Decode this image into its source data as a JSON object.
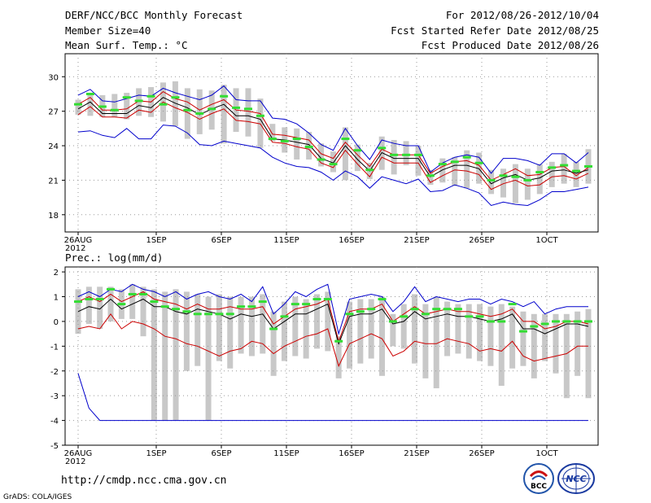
{
  "header": {
    "title": "DERF/NCC/BCC Monthly Forecast",
    "member_size": "Member Size=40",
    "variable": "Mean Surf. Temp.: °C",
    "period": "For 2012/08/26-2012/10/04",
    "fcst_started": "Fcst Started Refer Date 2012/08/25",
    "fcst_produced": "Fcst Produced Date 2012/08/26"
  },
  "footer": {
    "url": "http://cmdp.ncc.cma.gov.cn",
    "grads": "GrADS: COLA/IGES",
    "logo_bcc": "BCC",
    "logo_ncc": "NCC"
  },
  "colors": {
    "upper": "#0000cc",
    "lower": "#cc0000",
    "mean": "#000000",
    "box": "#c8c8c8",
    "obs": "#33dd33"
  },
  "chart_data": [
    {
      "type": "line",
      "title": "Mean Surf. Temp.: °C",
      "x_tick_labels": [
        "26AUG\n2012",
        "1SEP",
        "6SEP",
        "11SEP",
        "16SEP",
        "21SEP",
        "26SEP",
        "1OCT"
      ],
      "x_tick_days": [
        0,
        6,
        11,
        16,
        21,
        26,
        31,
        36
      ],
      "ylim": [
        16.5,
        32
      ],
      "yticks": [
        18,
        21,
        24,
        27,
        30
      ],
      "grid": true,
      "series": [
        {
          "name": "max",
          "color": "#0000cc",
          "values": [
            28.4,
            28.9,
            27.9,
            27.8,
            28.1,
            28.4,
            28.3,
            29.0,
            28.6,
            28.3,
            28.0,
            28.4,
            29.2,
            28.0,
            27.9,
            27.9,
            26.4,
            26.3,
            25.9,
            25.1,
            24.1,
            23.6,
            25.5,
            24.0,
            22.8,
            24.5,
            24.2,
            24.0,
            24.0,
            21.7,
            22.5,
            23.0,
            23.2,
            23.0,
            21.6,
            22.9,
            22.9,
            22.7,
            22.3,
            23.3,
            23.3,
            22.5,
            23.4
          ]
        },
        {
          "name": "upper",
          "color": "#cc0000",
          "values": [
            27.6,
            28.2,
            27.1,
            27.1,
            27.2,
            27.9,
            27.8,
            28.7,
            28.1,
            27.8,
            27.1,
            27.6,
            28.0,
            27.1,
            27.0,
            26.8,
            25.0,
            24.9,
            24.7,
            24.5,
            23.3,
            22.9,
            24.3,
            23.2,
            22.2,
            23.7,
            23.2,
            23.2,
            23.2,
            21.6,
            22.2,
            22.6,
            22.7,
            22.3,
            21.0,
            21.5,
            22.0,
            21.4,
            21.5,
            22.1,
            22.2,
            21.4,
            22.1
          ]
        },
        {
          "name": "mean",
          "color": "#000000",
          "values": [
            27.2,
            27.8,
            26.8,
            26.8,
            26.8,
            27.5,
            27.3,
            28.2,
            27.7,
            27.3,
            26.7,
            27.2,
            27.6,
            26.6,
            26.6,
            26.3,
            24.6,
            24.5,
            24.3,
            24.1,
            22.9,
            22.5,
            24.0,
            22.8,
            21.8,
            23.4,
            22.9,
            22.9,
            22.9,
            21.3,
            21.9,
            22.3,
            22.3,
            22.0,
            20.7,
            21.2,
            21.5,
            21.0,
            21.2,
            21.8,
            21.9,
            21.6,
            21.9
          ]
        },
        {
          "name": "lower",
          "color": "#cc0000",
          "values": [
            26.7,
            27.4,
            26.5,
            26.5,
            26.4,
            27.1,
            26.9,
            27.8,
            27.3,
            26.9,
            26.3,
            26.8,
            27.2,
            26.2,
            26.1,
            25.9,
            24.3,
            24.2,
            23.9,
            23.7,
            22.5,
            22.1,
            23.6,
            22.4,
            21.3,
            23.0,
            22.5,
            22.5,
            22.5,
            20.8,
            21.4,
            21.9,
            21.8,
            21.5,
            20.2,
            20.7,
            21.0,
            20.5,
            20.6,
            21.3,
            21.4,
            21.1,
            21.6
          ]
        },
        {
          "name": "min",
          "color": "#0000cc",
          "values": [
            25.2,
            25.3,
            24.9,
            24.7,
            25.5,
            24.6,
            24.6,
            25.8,
            25.7,
            25.1,
            24.1,
            24.0,
            24.4,
            24.2,
            24.0,
            23.8,
            23.0,
            22.5,
            22.2,
            22.1,
            21.7,
            21.0,
            21.8,
            21.3,
            20.3,
            21.3,
            21.0,
            20.7,
            21.1,
            20.0,
            20.1,
            20.6,
            20.3,
            19.9,
            18.8,
            19.1,
            18.9,
            18.8,
            19.3,
            20.0,
            20.0,
            20.2,
            20.4
          ]
        },
        {
          "name": "box_top",
          "color": "#c8c8c8",
          "values": [
            28.0,
            28.6,
            28.4,
            28.5,
            28.6,
            29.0,
            29.1,
            29.5,
            29.6,
            29.0,
            28.9,
            28.8,
            29.3,
            29.0,
            29.0,
            28.1,
            25.9,
            25.6,
            25.5,
            25.2,
            24.2,
            23.5,
            25.6,
            24.1,
            22.5,
            24.8,
            24.5,
            24.4,
            24.0,
            21.9,
            22.9,
            23.0,
            23.6,
            23.4,
            21.9,
            22.0,
            22.4,
            22.0,
            22.4,
            22.6,
            23.3,
            22.6,
            23.7
          ]
        },
        {
          "name": "box_bottom",
          "color": "#c8c8c8",
          "values": [
            26.7,
            26.6,
            26.5,
            26.5,
            26.3,
            26.6,
            26.5,
            26.1,
            25.7,
            24.6,
            25.0,
            25.4,
            24.2,
            25.2,
            24.8,
            23.8,
            24.4,
            23.4,
            22.8,
            22.8,
            22.2,
            21.7,
            21.0,
            21.8,
            21.1,
            21.9,
            21.5,
            22.3,
            21.4,
            20.6,
            20.8,
            20.5,
            20.3,
            20.7,
            19.8,
            19.5,
            19.0,
            19.3,
            19.8,
            20.4,
            20.7,
            20.4,
            20.7
          ]
        },
        {
          "name": "observed",
          "color": "#33dd33",
          "values": [
            27.6,
            28.5,
            27.4,
            27.1,
            28.2,
            27.9,
            28.3,
            27.6,
            28.2,
            27.1,
            26.8,
            27.2,
            28.3,
            27.3,
            27.2,
            26.6,
            24.6,
            24.4,
            24.6,
            23.9,
            22.8,
            22.4,
            24.6,
            23.6,
            21.9,
            23.8,
            23.2,
            23.2,
            23.2,
            21.4,
            22.4,
            22.6,
            23.0,
            22.5,
            21.0,
            21.4,
            21.3,
            21.0,
            21.7,
            22.1,
            22.3,
            21.8,
            22.2
          ]
        }
      ]
    },
    {
      "type": "line",
      "title": "Prec.: log(mm/d)",
      "x_tick_labels": [
        "26AUG\n2012",
        "1SEP",
        "6SEP",
        "11SEP",
        "16SEP",
        "21SEP",
        "26SEP",
        "1OCT"
      ],
      "x_tick_days": [
        0,
        6,
        11,
        16,
        21,
        26,
        31,
        36
      ],
      "ylim": [
        -5,
        2.2
      ],
      "yticks": [
        -5,
        -4,
        -3,
        -2,
        -1,
        0,
        1,
        2
      ],
      "grid": true,
      "series": [
        {
          "name": "max",
          "color": "#0000cc",
          "values": [
            1.0,
            1.2,
            1.0,
            1.3,
            1.2,
            1.5,
            1.3,
            1.2,
            1.0,
            1.2,
            0.9,
            1.1,
            1.2,
            1.0,
            0.9,
            1.1,
            0.8,
            1.4,
            0.3,
            0.7,
            1.2,
            1.0,
            1.3,
            1.5,
            -0.5,
            0.9,
            1.0,
            1.1,
            1.0,
            0.4,
            0.8,
            1.4,
            0.8,
            1.0,
            0.9,
            0.8,
            0.9,
            0.9,
            0.7,
            0.9,
            0.8,
            0.6,
            0.8,
            0.3,
            0.5,
            0.6,
            0.6,
            0.6
          ]
        },
        {
          "name": "upper",
          "color": "#cc0000",
          "values": [
            0.8,
            1.0,
            0.8,
            1.1,
            0.8,
            1.0,
            1.2,
            0.9,
            0.8,
            0.7,
            0.5,
            0.7,
            0.5,
            0.5,
            0.6,
            0.5,
            0.5,
            0.6,
            -0.1,
            0.2,
            0.5,
            0.6,
            0.7,
            0.9,
            -0.8,
            0.4,
            0.5,
            0.5,
            0.7,
            0.0,
            0.3,
            0.6,
            0.3,
            0.4,
            0.5,
            0.4,
            0.4,
            0.3,
            0.2,
            0.3,
            0.5,
            0.0,
            0.0,
            -0.3,
            -0.2,
            0.0,
            0.0,
            -0.1
          ]
        },
        {
          "name": "mean",
          "color": "#000000",
          "values": [
            0.4,
            0.6,
            0.5,
            0.9,
            0.5,
            0.7,
            0.9,
            0.6,
            0.6,
            0.4,
            0.3,
            0.5,
            0.4,
            0.3,
            0.1,
            0.3,
            0.2,
            0.3,
            -0.3,
            0.0,
            0.3,
            0.3,
            0.5,
            0.7,
            -0.9,
            0.2,
            0.3,
            0.3,
            0.5,
            -0.1,
            0.0,
            0.4,
            0.1,
            0.2,
            0.3,
            0.2,
            0.2,
            0.1,
            0.0,
            0.1,
            0.3,
            -0.3,
            -0.3,
            -0.5,
            -0.3,
            -0.1,
            -0.1,
            -0.2
          ]
        },
        {
          "name": "lower",
          "color": "#cc0000",
          "values": [
            -0.3,
            -0.2,
            -0.3,
            0.3,
            -0.3,
            0.0,
            -0.1,
            -0.3,
            -0.6,
            -0.7,
            -0.9,
            -1.0,
            -1.2,
            -1.4,
            -1.2,
            -1.1,
            -0.8,
            -0.9,
            -1.3,
            -1.0,
            -0.8,
            -0.6,
            -0.5,
            -0.3,
            -1.8,
            -0.9,
            -0.7,
            -0.5,
            -0.7,
            -1.4,
            -1.2,
            -0.8,
            -0.9,
            -0.9,
            -0.7,
            -0.8,
            -0.9,
            -1.2,
            -1.1,
            -1.2,
            -0.8,
            -1.4,
            -1.6,
            -1.5,
            -1.4,
            -1.3,
            -1.0,
            -1.0
          ]
        },
        {
          "name": "min",
          "color": "#0000cc",
          "values": [
            -2.1,
            -3.5,
            -4.0,
            -4.0,
            -4.0,
            -4.0,
            -4.0,
            -4.0,
            -4.0,
            -4.0,
            -4.0,
            -4.0,
            -4.0,
            -4.0,
            -4.0,
            -4.0,
            -4.0,
            -4.0,
            -4.0,
            -4.0,
            -4.0,
            -4.0,
            -4.0,
            -4.0,
            -4.0,
            -4.0,
            -4.0,
            -4.0,
            -4.0,
            -4.0,
            -4.0,
            -4.0,
            -4.0,
            -4.0,
            -4.0,
            -4.0,
            -4.0,
            -4.0,
            -4.0,
            -4.0,
            -4.0,
            -4.0,
            -4.0,
            -4.0,
            -4.0,
            -4.0,
            -4.0,
            -4.0
          ]
        },
        {
          "name": "box_top",
          "color": "#c8c8c8",
          "values": [
            1.3,
            1.4,
            1.4,
            1.4,
            1.3,
            1.5,
            1.4,
            1.3,
            1.2,
            1.3,
            1.2,
            1.1,
            1.0,
            1.1,
            1.0,
            1.0,
            1.0,
            1.1,
            0.4,
            0.8,
            1.0,
            0.9,
            1.1,
            1.2,
            -0.6,
            0.8,
            0.9,
            0.9,
            1.0,
            0.3,
            0.7,
            1.1,
            0.7,
            1.0,
            0.8,
            0.7,
            0.7,
            0.7,
            0.6,
            0.7,
            0.6,
            0.4,
            0.3,
            0.3,
            0.3,
            0.3,
            0.4,
            0.5
          ]
        },
        {
          "name": "box_bottom",
          "color": "#c8c8c8",
          "values": [
            -0.5,
            -0.1,
            -0.3,
            0.0,
            0.1,
            0.1,
            -0.6,
            -4.0,
            -4.0,
            -4.0,
            -2.0,
            -1.8,
            -4.0,
            -1.6,
            -1.9,
            -1.3,
            -1.4,
            -1.3,
            -2.2,
            -1.6,
            -1.4,
            -1.5,
            -1.1,
            -1.2,
            -2.3,
            -1.9,
            -1.7,
            -1.5,
            -2.2,
            -1.0,
            -1.1,
            -1.7,
            -2.3,
            -2.7,
            -1.4,
            -1.3,
            -1.5,
            -1.6,
            -1.8,
            -2.6,
            -1.9,
            -1.8,
            -2.3,
            -1.6,
            -2.1,
            -3.1,
            -2.2,
            -3.1
          ]
        },
        {
          "name": "observed",
          "color": "#33dd33",
          "values": [
            0.8,
            0.9,
            0.9,
            1.3,
            0.7,
            1.1,
            1.1,
            0.8,
            0.6,
            0.5,
            0.4,
            0.3,
            0.3,
            0.3,
            0.3,
            0.6,
            0.6,
            0.8,
            -0.3,
            0.2,
            0.7,
            0.7,
            0.9,
            0.9,
            -0.8,
            0.3,
            0.4,
            0.5,
            0.9,
            0.0,
            0.2,
            0.5,
            0.3,
            0.5,
            0.5,
            0.5,
            0.2,
            0.2,
            0.0,
            0.0,
            0.7,
            -0.4,
            -0.2,
            -0.1,
            0.0,
            0.0,
            0.0,
            0.0
          ]
        }
      ]
    }
  ]
}
